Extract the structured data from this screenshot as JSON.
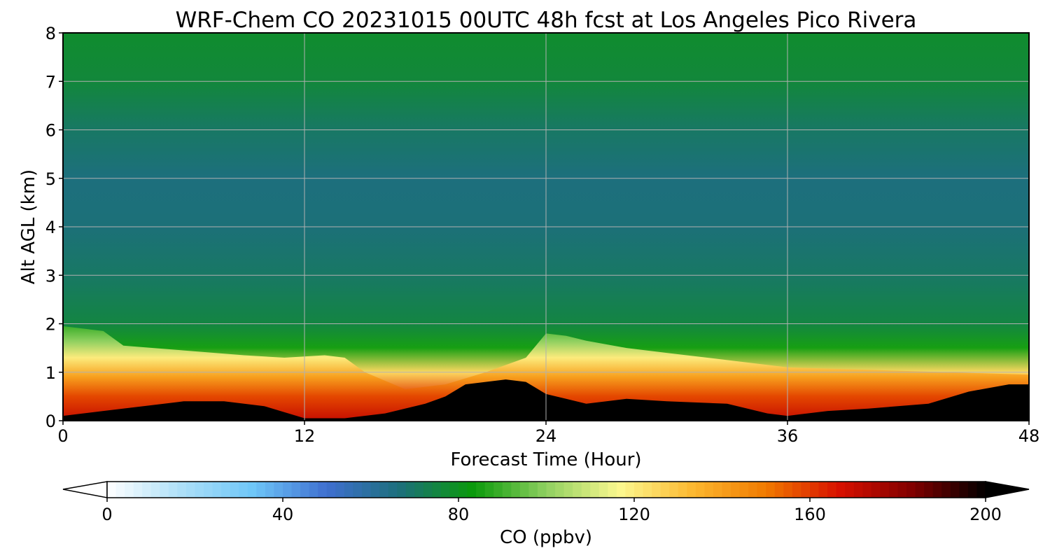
{
  "chart_data": {
    "type": "heatmap",
    "title": "WRF-Chem CO  20231015 00UTC 48h fcst at Los Angeles Pico Rivera",
    "xlabel": "Forecast Time (Hour)",
    "ylabel": "Alt AGL (km)",
    "xlim": [
      0,
      48
    ],
    "ylim": [
      0,
      8
    ],
    "xticks": [
      "0",
      "12",
      "24",
      "36",
      "48"
    ],
    "yticks": [
      "0",
      "1",
      "2",
      "3",
      "4",
      "5",
      "6",
      "7",
      "8"
    ],
    "grid": true,
    "colorbar": {
      "label": "CO  (ppbv)",
      "min": 0,
      "max": 200,
      "ticks": [
        "0",
        "40",
        "80",
        "120",
        "160",
        "200"
      ],
      "extend": "both",
      "colors": [
        "#ffffff",
        "#aee0f8",
        "#6ec6f8",
        "#3f6fd0",
        "#1c6f7a",
        "#0a9a0a",
        "#8fd060",
        "#fcf88f",
        "#fcb830",
        "#f07a00",
        "#d81000",
        "#800000",
        "#000000"
      ]
    },
    "profile_layers": [
      {
        "alt_km": 0.0,
        "co_ppbv": 175
      },
      {
        "alt_km": 0.5,
        "co_ppbv": 160
      },
      {
        "alt_km": 1.0,
        "co_ppbv": 125
      },
      {
        "alt_km": 1.5,
        "co_ppbv": 85
      },
      {
        "alt_km": 2.0,
        "co_ppbv": 75
      },
      {
        "alt_km": 3.0,
        "co_ppbv": 70
      },
      {
        "alt_km": 4.0,
        "co_ppbv": 67
      },
      {
        "alt_km": 5.0,
        "co_ppbv": 66
      },
      {
        "alt_km": 6.0,
        "co_ppbv": 70
      },
      {
        "alt_km": 7.0,
        "co_ppbv": 76
      },
      {
        "alt_km": 8.0,
        "co_ppbv": 78
      }
    ],
    "boundary_layer_top_km": {
      "x": [
        0,
        2,
        3,
        6,
        9,
        11,
        13,
        14,
        15,
        17,
        19,
        21,
        23,
        24,
        25,
        26,
        28,
        30,
        33,
        36,
        40,
        44,
        48
      ],
      "y": [
        1.95,
        1.85,
        1.55,
        1.45,
        1.35,
        1.3,
        1.35,
        1.3,
        1.0,
        0.65,
        0.75,
        1.0,
        1.3,
        1.8,
        1.75,
        1.65,
        1.5,
        1.4,
        1.25,
        1.1,
        1.05,
        1.0,
        0.95
      ]
    },
    "surface_max_km": {
      "x": [
        0,
        2,
        4,
        6,
        8,
        10,
        12,
        14,
        16,
        18,
        19,
        20,
        22,
        23,
        24,
        25,
        26,
        28,
        30,
        33,
        35,
        36,
        38,
        40,
        43,
        45,
        47,
        48
      ],
      "y": [
        0.1,
        0.2,
        0.3,
        0.4,
        0.4,
        0.3,
        0.05,
        0.05,
        0.15,
        0.35,
        0.5,
        0.75,
        0.85,
        0.8,
        0.55,
        0.45,
        0.35,
        0.45,
        0.4,
        0.35,
        0.15,
        0.1,
        0.2,
        0.25,
        0.35,
        0.6,
        0.75,
        0.75
      ]
    }
  }
}
